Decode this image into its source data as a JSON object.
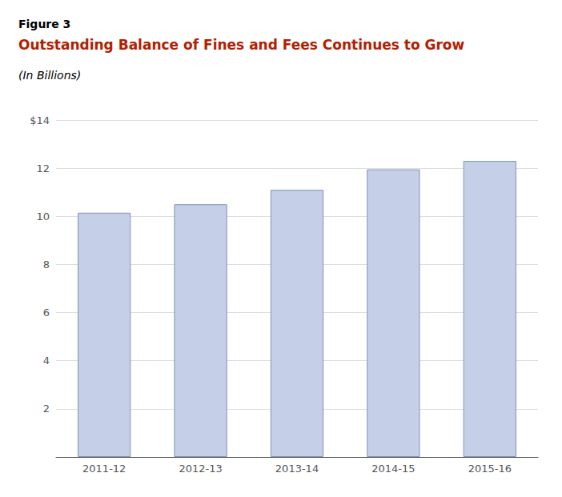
{
  "chart_data": {
    "type": "bar",
    "annotations": [
      "Figure 3"
    ],
    "title": "Outstanding Balance of Fines and Fees Continues to Grow",
    "subtitle": "(In Billions)",
    "categories": [
      "2011-12",
      "2012-13",
      "2013-14",
      "2014-15",
      "2015-16"
    ],
    "values": [
      10.15,
      10.5,
      11.1,
      11.95,
      12.3
    ],
    "color": "#c5cfe8",
    "ylim": [
      0,
      14
    ],
    "yticks": [
      {
        "value": 0,
        "label": ""
      },
      2,
      4,
      6,
      8,
      10,
      12,
      {
        "value": 14,
        "label": "$14"
      }
    ],
    "grid": true
  }
}
